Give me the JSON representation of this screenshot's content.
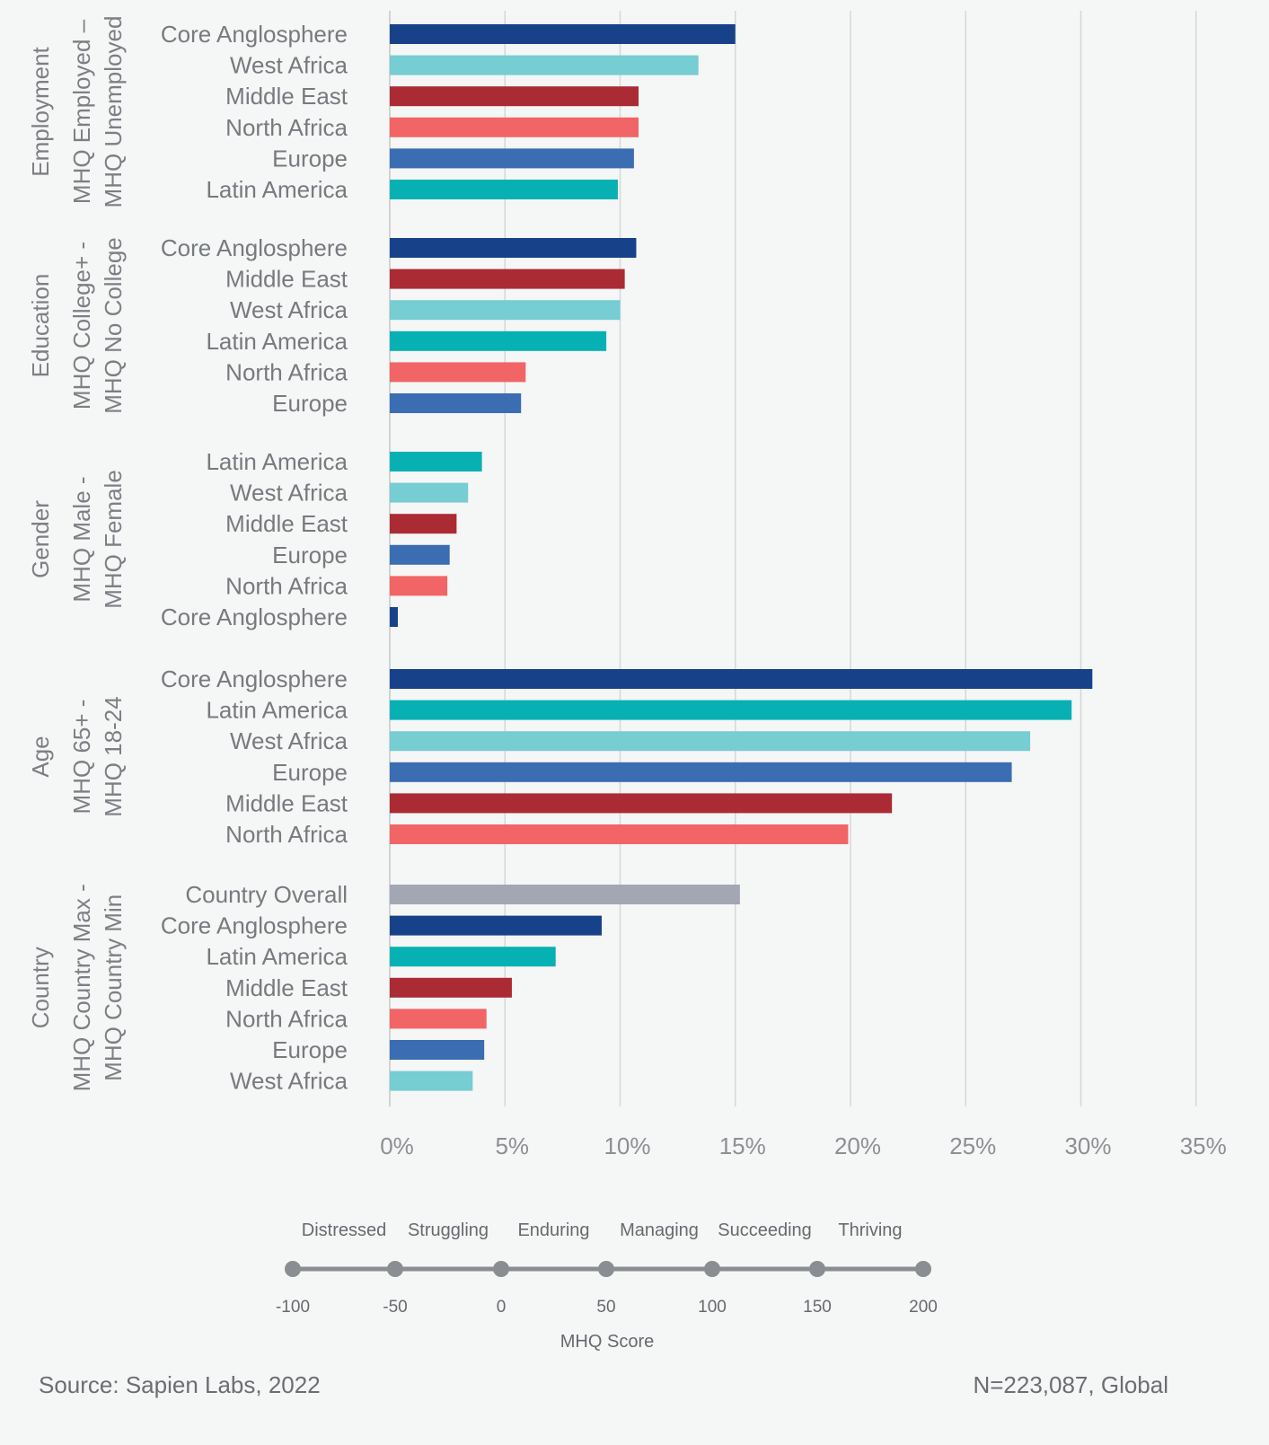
{
  "chart_data": {
    "type": "bar",
    "orientation": "horizontal",
    "x_unit": "%",
    "xlim": [
      0,
      35
    ],
    "x_ticks": [
      "0%",
      "5%",
      "10%",
      "15%",
      "20%",
      "25%",
      "30%",
      "35%"
    ],
    "grid": true,
    "groups": [
      {
        "name": "Employment",
        "sublabel": [
          "MHQ Employed –",
          "MHQ Unemployed"
        ],
        "bars": [
          {
            "label": "Core Anglosphere",
            "value": 15.0,
            "color": "#17428a"
          },
          {
            "label": "West Africa",
            "value": 13.4,
            "color": "#76cdd2"
          },
          {
            "label": "Middle East",
            "value": 10.8,
            "color": "#ab2b35"
          },
          {
            "label": "North Africa",
            "value": 10.8,
            "color": "#f16566"
          },
          {
            "label": "Europe",
            "value": 10.6,
            "color": "#3a6db2"
          },
          {
            "label": "Latin America",
            "value": 9.9,
            "color": "#07b1b3"
          }
        ]
      },
      {
        "name": "Education",
        "sublabel": [
          "MHQ College+ -",
          "MHQ No College"
        ],
        "bars": [
          {
            "label": "Core Anglosphere",
            "value": 10.7,
            "color": "#17428a"
          },
          {
            "label": "Middle East",
            "value": 10.2,
            "color": "#ab2b35"
          },
          {
            "label": "West Africa",
            "value": 10.0,
            "color": "#76cdd2"
          },
          {
            "label": "Latin America",
            "value": 9.4,
            "color": "#07b1b3"
          },
          {
            "label": "North Africa",
            "value": 5.9,
            "color": "#f16566"
          },
          {
            "label": "Europe",
            "value": 5.7,
            "color": "#3a6db2"
          }
        ]
      },
      {
        "name": "Gender",
        "sublabel": [
          "MHQ Male -",
          "MHQ Female"
        ],
        "bars": [
          {
            "label": "Latin America",
            "value": 4.0,
            "color": "#07b1b3"
          },
          {
            "label": "West Africa",
            "value": 3.4,
            "color": "#76cdd2"
          },
          {
            "label": "Middle East",
            "value": 2.9,
            "color": "#ab2b35"
          },
          {
            "label": "Europe",
            "value": 2.6,
            "color": "#3a6db2"
          },
          {
            "label": "North Africa",
            "value": 2.5,
            "color": "#f16566"
          },
          {
            "label": "Core Anglosphere",
            "value": 0.35,
            "color": "#17428a"
          }
        ]
      },
      {
        "name": "Age",
        "sublabel": [
          "MHQ 65+ -",
          "MHQ 18-24"
        ],
        "bars": [
          {
            "label": "Core Anglosphere",
            "value": 30.5,
            "color": "#17428a"
          },
          {
            "label": "Latin America",
            "value": 29.6,
            "color": "#07b1b3"
          },
          {
            "label": "West Africa",
            "value": 27.8,
            "color": "#76cdd2"
          },
          {
            "label": "Europe",
            "value": 27.0,
            "color": "#3a6db2"
          },
          {
            "label": "Middle East",
            "value": 21.8,
            "color": "#ab2b35"
          },
          {
            "label": "North Africa",
            "value": 19.9,
            "color": "#f16566"
          }
        ]
      },
      {
        "name": "Country",
        "sublabel": [
          "MHQ Country Max -",
          "MHQ Country Min"
        ],
        "bars": [
          {
            "label": "Country Overall",
            "value": 15.2,
            "color": "#a3a7b3"
          },
          {
            "label": "Core Anglosphere",
            "value": 9.2,
            "color": "#17428a"
          },
          {
            "label": "Latin America",
            "value": 7.2,
            "color": "#07b1b3"
          },
          {
            "label": "Middle East",
            "value": 5.3,
            "color": "#ab2b35"
          },
          {
            "label": "North Africa",
            "value": 4.2,
            "color": "#f16566"
          },
          {
            "label": "Europe",
            "value": 4.1,
            "color": "#3a6db2"
          },
          {
            "label": "West Africa",
            "value": 3.6,
            "color": "#76cdd2"
          }
        ]
      }
    ]
  },
  "mhq_scale": {
    "categories": [
      "Distressed",
      "Struggling",
      "Enduring",
      "Managing",
      "Succeeding",
      "Thriving"
    ],
    "ticks": [
      "-100",
      "-50",
      "0",
      "50",
      "100",
      "150",
      "200"
    ],
    "title": "MHQ Score",
    "color": "#8a8d91"
  },
  "footer": {
    "source": "Source: Sapien Labs, 2022",
    "sample": "N=223,087, Global"
  }
}
